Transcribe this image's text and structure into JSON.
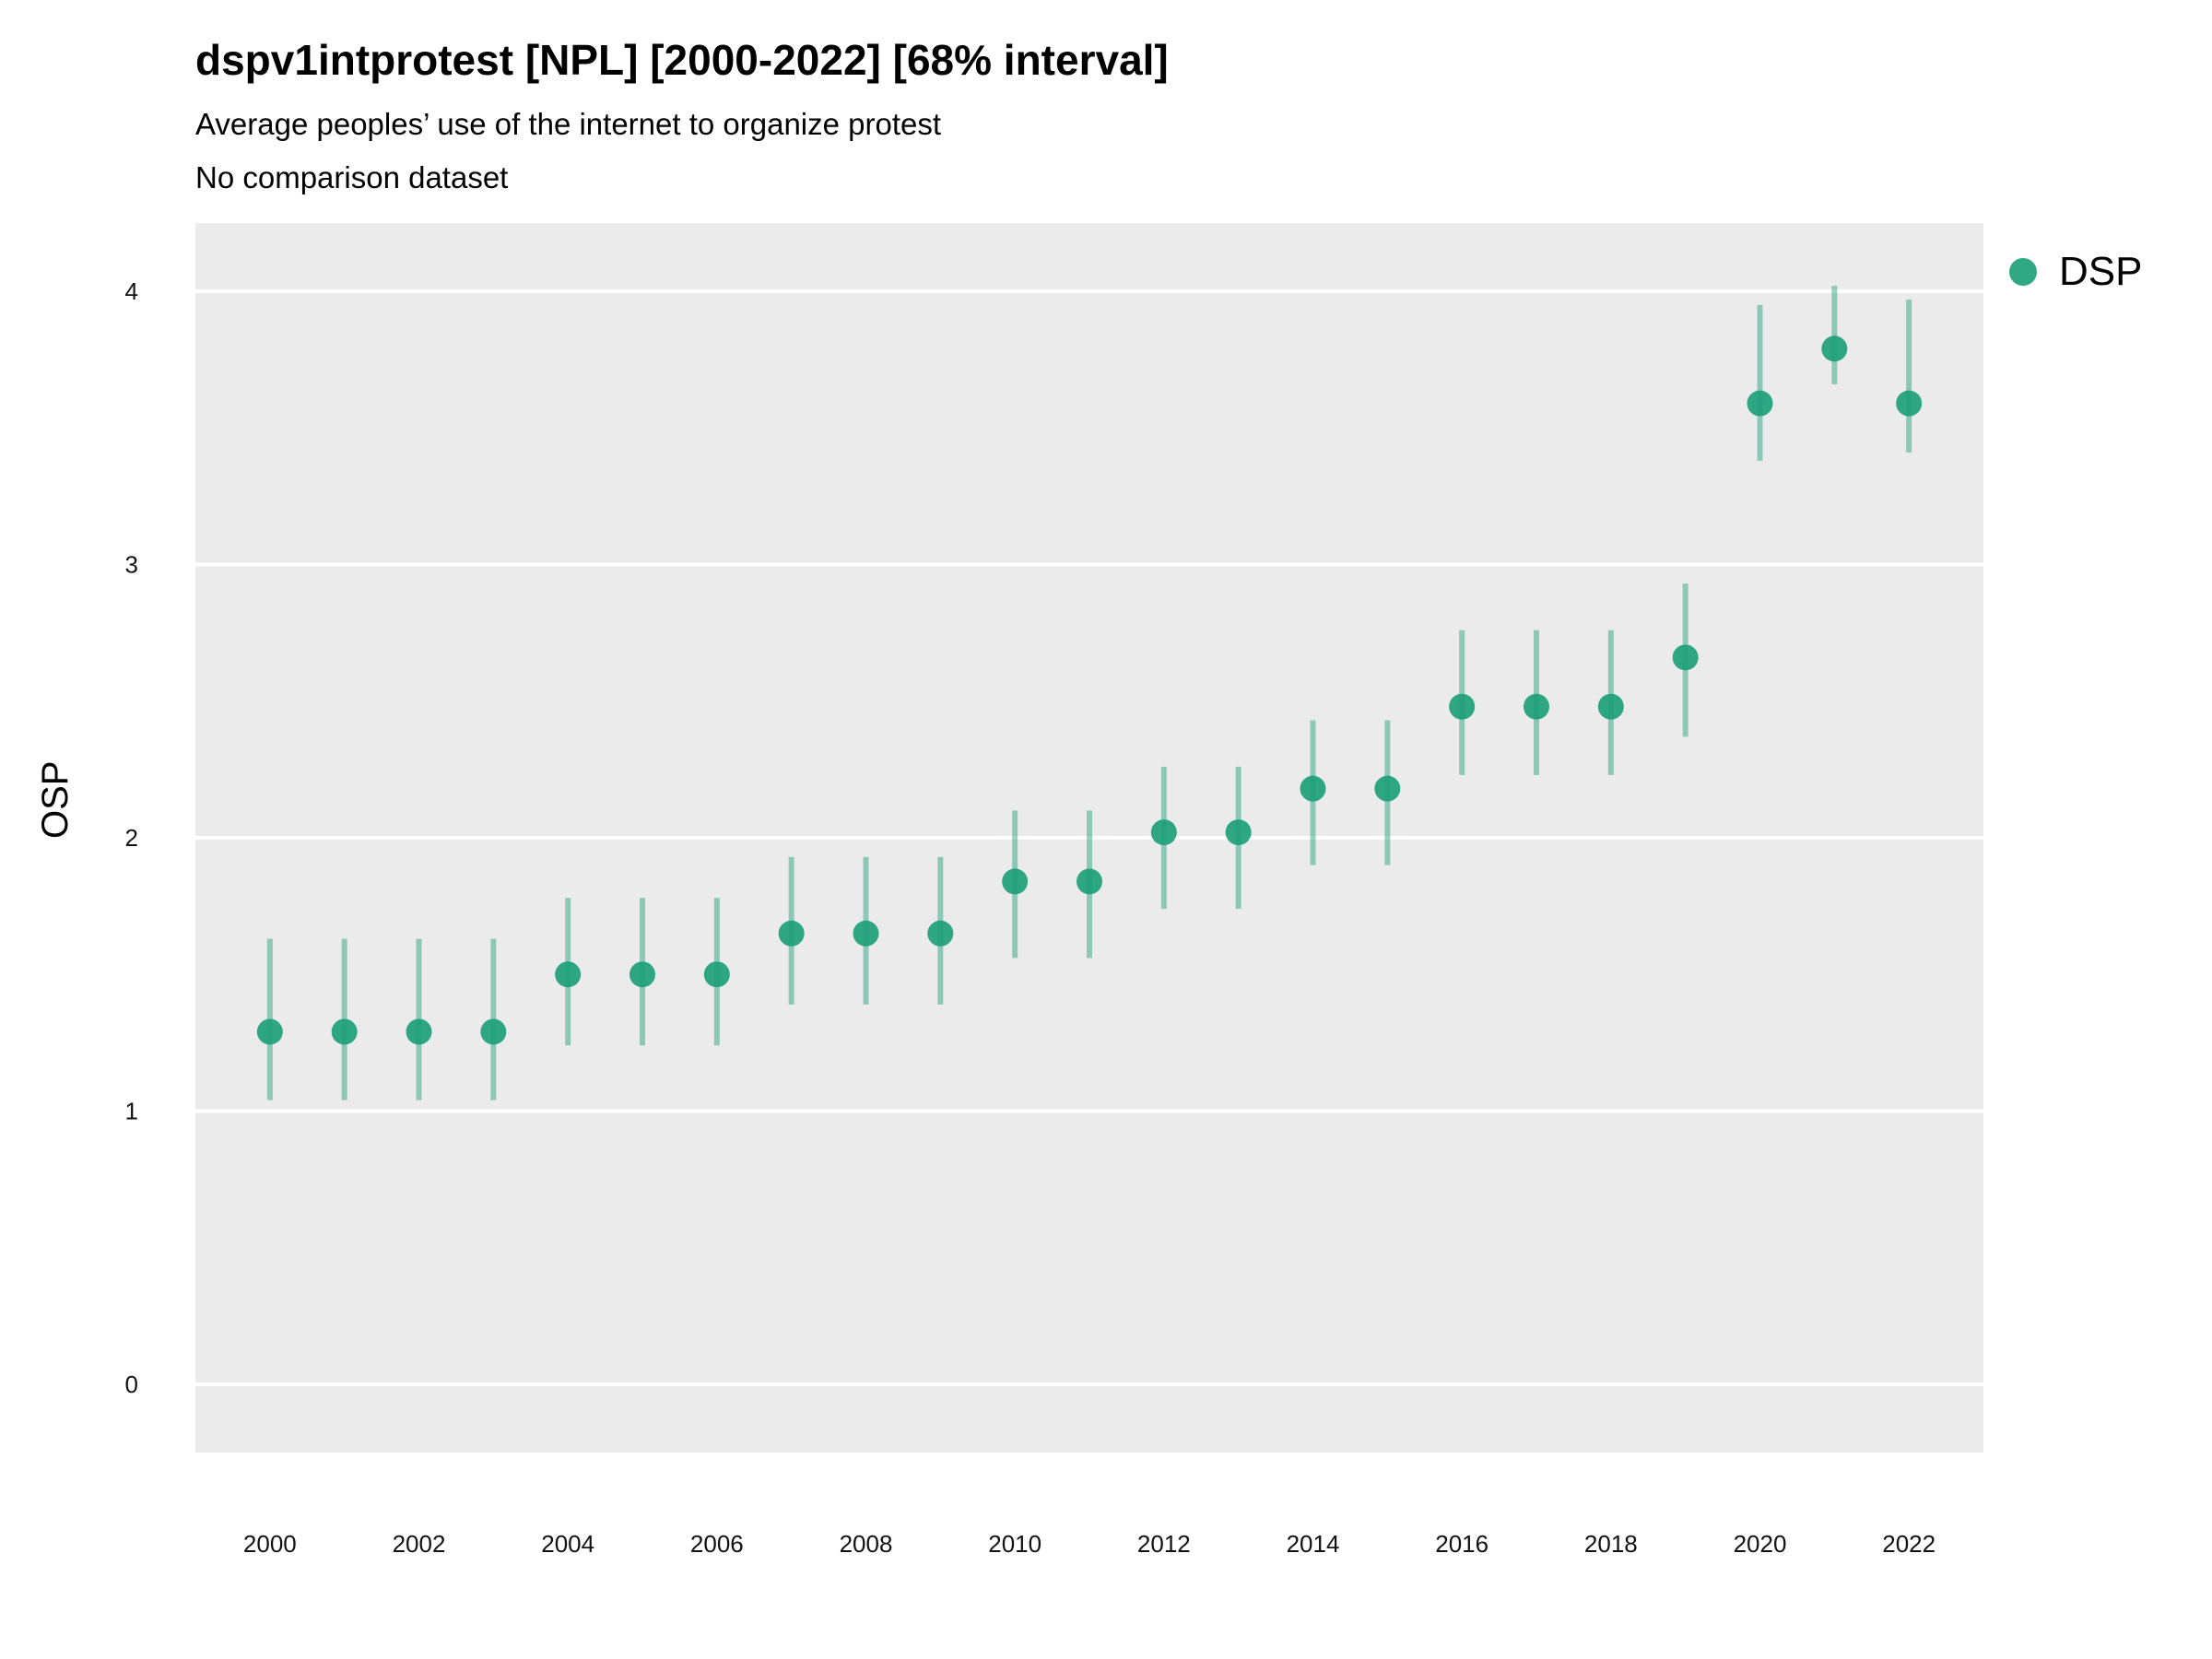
{
  "header": {
    "title": "dspv1intprotest [NPL] [2000-2022] [68% interval]",
    "subtitle": "Average peoples’ use of the internet to organize protest",
    "subtitle2": "No comparison dataset"
  },
  "legend": {
    "label": "DSP",
    "color": "#1b9e77"
  },
  "chart_data": {
    "type": "scatter",
    "title": "dspv1intprotest [NPL] [2000-2022] [68% interval]",
    "subtitle": "Average peoples’ use of the internet to organize protest",
    "xlabel": "",
    "ylabel": "OSP",
    "xlim": [
      1999,
      2023
    ],
    "ylim": [
      -0.25,
      4.25
    ],
    "yticks": [
      0,
      1,
      2,
      3,
      4
    ],
    "xticks": [
      2000,
      2002,
      2004,
      2006,
      2008,
      2010,
      2012,
      2014,
      2016,
      2018,
      2020,
      2022
    ],
    "grid": "horizontal",
    "legend_position": "right",
    "series": [
      {
        "name": "DSP",
        "color": "#1b9e77",
        "x": [
          2000,
          2001,
          2002,
          2003,
          2004,
          2005,
          2006,
          2007,
          2008,
          2009,
          2010,
          2011,
          2012,
          2013,
          2014,
          2015,
          2016,
          2017,
          2018,
          2019,
          2020,
          2021,
          2022
        ],
        "y": [
          1.29,
          1.29,
          1.29,
          1.29,
          1.5,
          1.5,
          1.5,
          1.65,
          1.65,
          1.65,
          1.84,
          1.84,
          2.02,
          2.02,
          2.18,
          2.18,
          2.48,
          2.48,
          2.48,
          2.66,
          3.59,
          3.79,
          3.59
        ],
        "lower": [
          1.04,
          1.04,
          1.04,
          1.04,
          1.24,
          1.24,
          1.24,
          1.39,
          1.39,
          1.39,
          1.56,
          1.56,
          1.74,
          1.74,
          1.9,
          1.9,
          2.23,
          2.23,
          2.23,
          2.37,
          3.38,
          3.66,
          3.41
        ],
        "upper": [
          1.63,
          1.63,
          1.63,
          1.63,
          1.78,
          1.78,
          1.78,
          1.93,
          1.93,
          1.93,
          2.1,
          2.1,
          2.26,
          2.26,
          2.43,
          2.43,
          2.76,
          2.76,
          2.76,
          2.93,
          3.95,
          4.02,
          3.97
        ]
      }
    ]
  }
}
